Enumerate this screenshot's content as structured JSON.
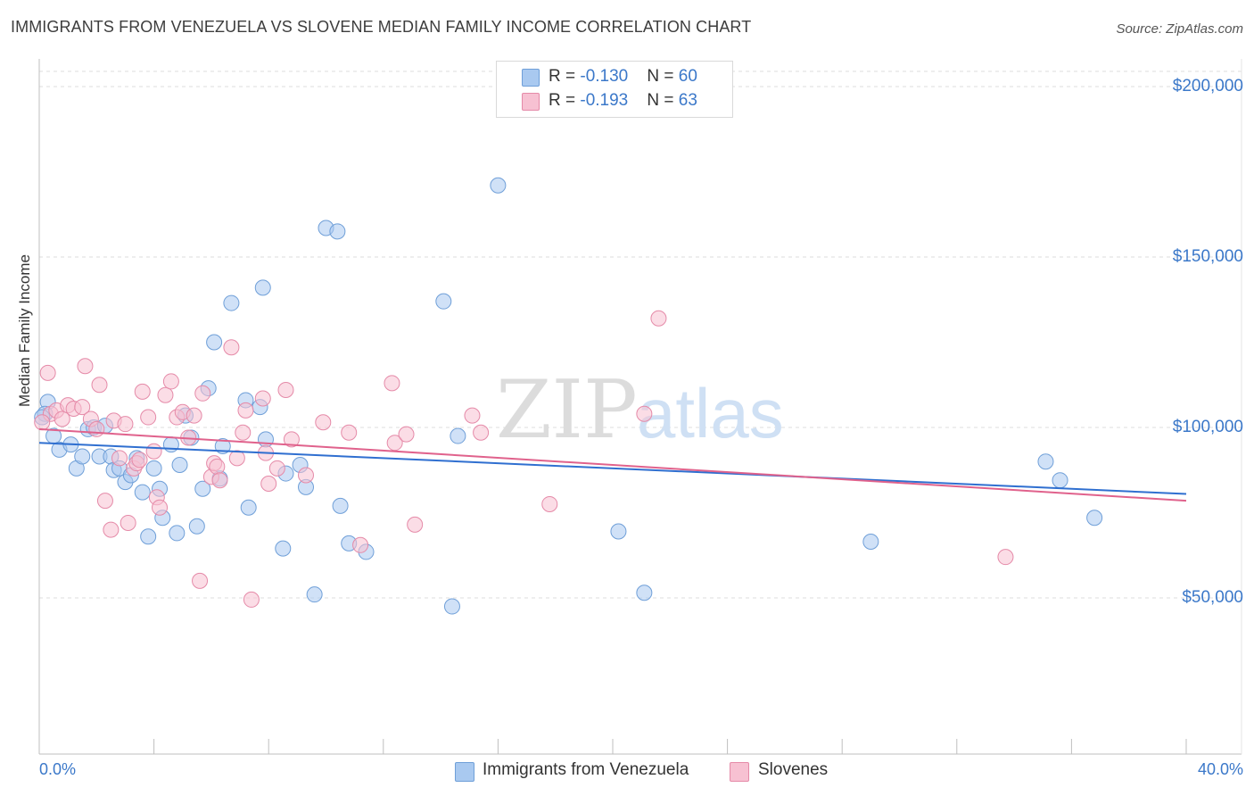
{
  "title": "IMMIGRANTS FROM VENEZUELA VS SLOVENE MEDIAN FAMILY INCOME CORRELATION CHART",
  "source": "Source: ZipAtlas.com",
  "watermark": {
    "zip": "ZIP",
    "atlas": "atlas"
  },
  "legend": {
    "rows": [
      {
        "r_label": "R = ",
        "r_value": "-0.130",
        "n_label": "N = ",
        "n_value": "60",
        "color": "#a9c9f0",
        "border": "#6f9fd8"
      },
      {
        "r_label": "R = ",
        "r_value": "-0.193",
        "n_label": "N = ",
        "n_value": "63",
        "color": "#f7c1d2",
        "border": "#e58aa8"
      }
    ]
  },
  "chart_data": {
    "type": "scatter",
    "title": "IMMIGRANTS FROM VENEZUELA VS SLOVENE MEDIAN FAMILY INCOME CORRELATION CHART",
    "xlabel": "",
    "ylabel": "Median Family Income",
    "xlim": [
      0,
      40
    ],
    "ylim": [
      0,
      210000
    ],
    "x_tick_labels": [
      "0.0%",
      "40.0%"
    ],
    "y_ticks": [
      50000,
      100000,
      150000,
      200000
    ],
    "y_tick_labels": [
      "$50,000",
      "$100,000",
      "$150,000",
      "$200,000"
    ],
    "grid": "horizontal dashed",
    "legend_position": "top-center",
    "series": [
      {
        "name": "Immigrants from Venezuela",
        "color": "#a9c9f0",
        "edge": "#6f9fd8",
        "line_color": "#2f6fd0",
        "trend": [
          [
            0,
            95500
          ],
          [
            40,
            80500
          ]
        ],
        "points": [
          [
            0.3,
            107500
          ],
          [
            0.2,
            104000
          ],
          [
            0.5,
            97500
          ],
          [
            0.7,
            93500
          ],
          [
            1.1,
            95000
          ],
          [
            1.3,
            88000
          ],
          [
            1.5,
            91500
          ],
          [
            1.7,
            99500
          ],
          [
            1.9,
            100000
          ],
          [
            2.1,
            91500
          ],
          [
            2.3,
            100500
          ],
          [
            2.5,
            91500
          ],
          [
            2.6,
            87500
          ],
          [
            2.8,
            88000
          ],
          [
            3.0,
            84000
          ],
          [
            3.2,
            86000
          ],
          [
            3.4,
            91000
          ],
          [
            3.6,
            81000
          ],
          [
            3.8,
            68000
          ],
          [
            4.0,
            88000
          ],
          [
            4.2,
            82000
          ],
          [
            4.3,
            73500
          ],
          [
            4.6,
            95000
          ],
          [
            4.8,
            69000
          ],
          [
            4.9,
            89000
          ],
          [
            5.1,
            103500
          ],
          [
            5.3,
            97000
          ],
          [
            5.5,
            71000
          ],
          [
            5.7,
            82000
          ],
          [
            5.9,
            111500
          ],
          [
            6.1,
            125000
          ],
          [
            6.3,
            85000
          ],
          [
            6.4,
            94500
          ],
          [
            6.7,
            136500
          ],
          [
            7.3,
            76500
          ],
          [
            7.2,
            108000
          ],
          [
            7.7,
            106000
          ],
          [
            7.8,
            141000
          ],
          [
            7.9,
            96500
          ],
          [
            8.5,
            64500
          ],
          [
            8.6,
            86500
          ],
          [
            9.1,
            89000
          ],
          [
            9.3,
            82500
          ],
          [
            9.6,
            51000
          ],
          [
            10.0,
            158500
          ],
          [
            10.4,
            157500
          ],
          [
            10.5,
            77000
          ],
          [
            10.8,
            66000
          ],
          [
            11.4,
            63500
          ],
          [
            14.1,
            137000
          ],
          [
            14.4,
            47500
          ],
          [
            14.6,
            97500
          ],
          [
            16.0,
            171000
          ],
          [
            20.2,
            69500
          ],
          [
            21.1,
            51500
          ],
          [
            29.0,
            66500
          ],
          [
            35.1,
            90000
          ],
          [
            35.6,
            84500
          ],
          [
            36.8,
            73500
          ],
          [
            0.1,
            103000
          ]
        ]
      },
      {
        "name": "Slovenes",
        "color": "#f7c1d2",
        "edge": "#e58aa8",
        "line_color": "#e0628c",
        "trend": [
          [
            0,
            99500
          ],
          [
            40,
            78500
          ]
        ],
        "points": [
          [
            0.3,
            116000
          ],
          [
            0.4,
            104000
          ],
          [
            0.6,
            105000
          ],
          [
            0.8,
            102500
          ],
          [
            1.0,
            106500
          ],
          [
            1.2,
            105500
          ],
          [
            1.5,
            106000
          ],
          [
            1.6,
            118000
          ],
          [
            1.8,
            102500
          ],
          [
            2.0,
            99500
          ],
          [
            2.1,
            112500
          ],
          [
            2.3,
            78500
          ],
          [
            2.5,
            70000
          ],
          [
            2.6,
            102000
          ],
          [
            2.8,
            91000
          ],
          [
            3.0,
            101000
          ],
          [
            3.1,
            72000
          ],
          [
            3.3,
            88000
          ],
          [
            3.4,
            89500
          ],
          [
            3.5,
            90500
          ],
          [
            3.6,
            110500
          ],
          [
            3.8,
            103000
          ],
          [
            4.0,
            93000
          ],
          [
            4.1,
            79500
          ],
          [
            4.2,
            76500
          ],
          [
            4.4,
            109500
          ],
          [
            4.6,
            113500
          ],
          [
            4.8,
            103000
          ],
          [
            5.0,
            104500
          ],
          [
            5.2,
            97000
          ],
          [
            5.4,
            103500
          ],
          [
            5.6,
            55000
          ],
          [
            5.7,
            110000
          ],
          [
            6.0,
            85500
          ],
          [
            6.1,
            89500
          ],
          [
            6.2,
            88500
          ],
          [
            6.3,
            84500
          ],
          [
            6.7,
            123500
          ],
          [
            6.9,
            91000
          ],
          [
            7.1,
            98500
          ],
          [
            7.2,
            105000
          ],
          [
            7.4,
            49500
          ],
          [
            7.8,
            108500
          ],
          [
            7.9,
            92500
          ],
          [
            8.0,
            83500
          ],
          [
            8.3,
            88000
          ],
          [
            8.6,
            111000
          ],
          [
            8.8,
            96500
          ],
          [
            9.3,
            86000
          ],
          [
            9.9,
            101500
          ],
          [
            10.8,
            98500
          ],
          [
            11.2,
            65500
          ],
          [
            12.3,
            113000
          ],
          [
            12.4,
            95500
          ],
          [
            12.8,
            98000
          ],
          [
            13.1,
            71500
          ],
          [
            15.1,
            103500
          ],
          [
            15.4,
            98500
          ],
          [
            17.8,
            77500
          ],
          [
            21.1,
            104000
          ],
          [
            21.6,
            132000
          ],
          [
            33.7,
            62000
          ],
          [
            0.1,
            101500
          ]
        ]
      }
    ]
  },
  "bottom_legend": {
    "items": [
      "Immigrants from Venezuela",
      "Slovenes"
    ]
  }
}
